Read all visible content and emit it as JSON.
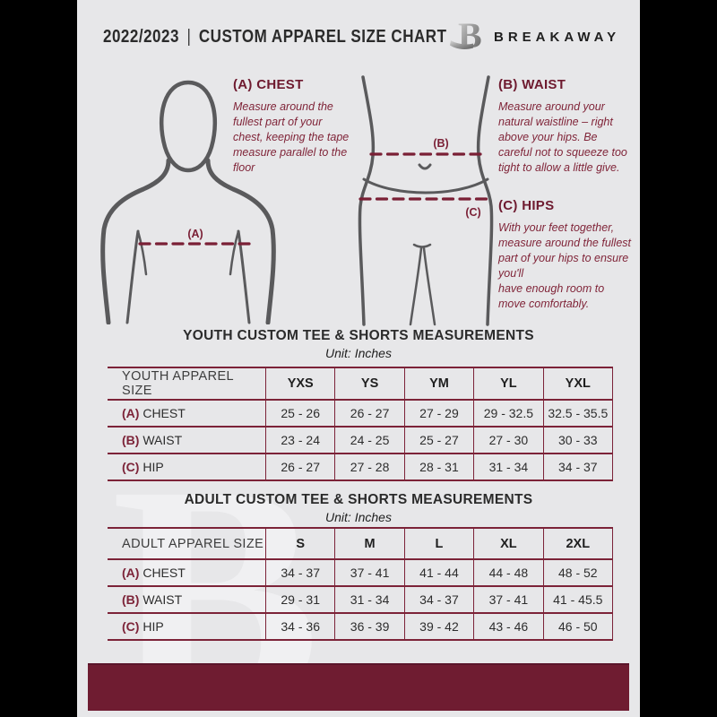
{
  "header": {
    "year": "2022/2023",
    "sep": "|",
    "title": "CUSTOM APPAREL SIZE CHART",
    "brand": "BREAKAWAY"
  },
  "watermark": "B",
  "instructions": {
    "chest": {
      "heading": "(A) CHEST",
      "body": "Measure around the fullest part of your chest, keeping the tape measure parallel to the floor"
    },
    "waist": {
      "heading": "(B) WAIST",
      "body": "Measure around your natural waistline – right above your hips. Be careful not to squeeze too tight to allow a little give."
    },
    "hips": {
      "heading": "(C) HIPS",
      "body": "With your feet together, measure around the fullest part of your hips to ensure you'll\nhave enough room to move comfortably."
    }
  },
  "diagram_labels": {
    "chest": "(A)",
    "waist": "(B)",
    "hips": "(C)"
  },
  "youth_section": {
    "title": "YOUTH CUSTOM TEE & SHORTS MEASUREMENTS",
    "unit": "Unit: Inches"
  },
  "adult_section": {
    "title": "ADULT CUSTOM TEE & SHORTS MEASUREMENTS",
    "unit": "Unit: Inches"
  },
  "youth_table": {
    "header": [
      "YOUTH APPAREL SIZE",
      "YXS",
      "YS",
      "YM",
      "YL",
      "YXL"
    ],
    "rows": [
      {
        "prefix": "(A)",
        "label": "CHEST",
        "values": [
          "25 - 26",
          "26 - 27",
          "27 - 29",
          "29 - 32.5",
          "32.5 - 35.5"
        ]
      },
      {
        "prefix": "(B)",
        "label": "WAIST",
        "values": [
          "23 - 24",
          "24 - 25",
          "25 - 27",
          "27 - 30",
          "30 - 33"
        ]
      },
      {
        "prefix": "(C)",
        "label": "HIP",
        "values": [
          "26 - 27",
          "27 - 28",
          "28 - 31",
          "31 - 34",
          "34 - 37"
        ]
      }
    ]
  },
  "adult_table": {
    "header": [
      "ADULT APPAREL SIZE",
      "S",
      "M",
      "L",
      "XL",
      "2XL"
    ],
    "rows": [
      {
        "prefix": "(A)",
        "label": "CHEST",
        "values": [
          "34 - 37",
          "37 - 41",
          "41 - 44",
          "44 - 48",
          "48 - 52"
        ]
      },
      {
        "prefix": "(B)",
        "label": "WAIST",
        "values": [
          "29 - 31",
          "31 - 34",
          "34 - 37",
          "37 - 41",
          "41 - 45.5"
        ]
      },
      {
        "prefix": "(C)",
        "label": "HIP",
        "values": [
          "34 - 36",
          "36 - 39",
          "39 - 42",
          "43 - 46",
          "46 - 50"
        ]
      }
    ]
  },
  "colors": {
    "page_bg": "#e7e7e9",
    "frame_bg": "#000000",
    "accent_maroon": "#7c2338",
    "footer_bar": "#6f1c31",
    "silhouette_gray": "#5a5a5c",
    "text_dark": "#2b2b2b"
  }
}
